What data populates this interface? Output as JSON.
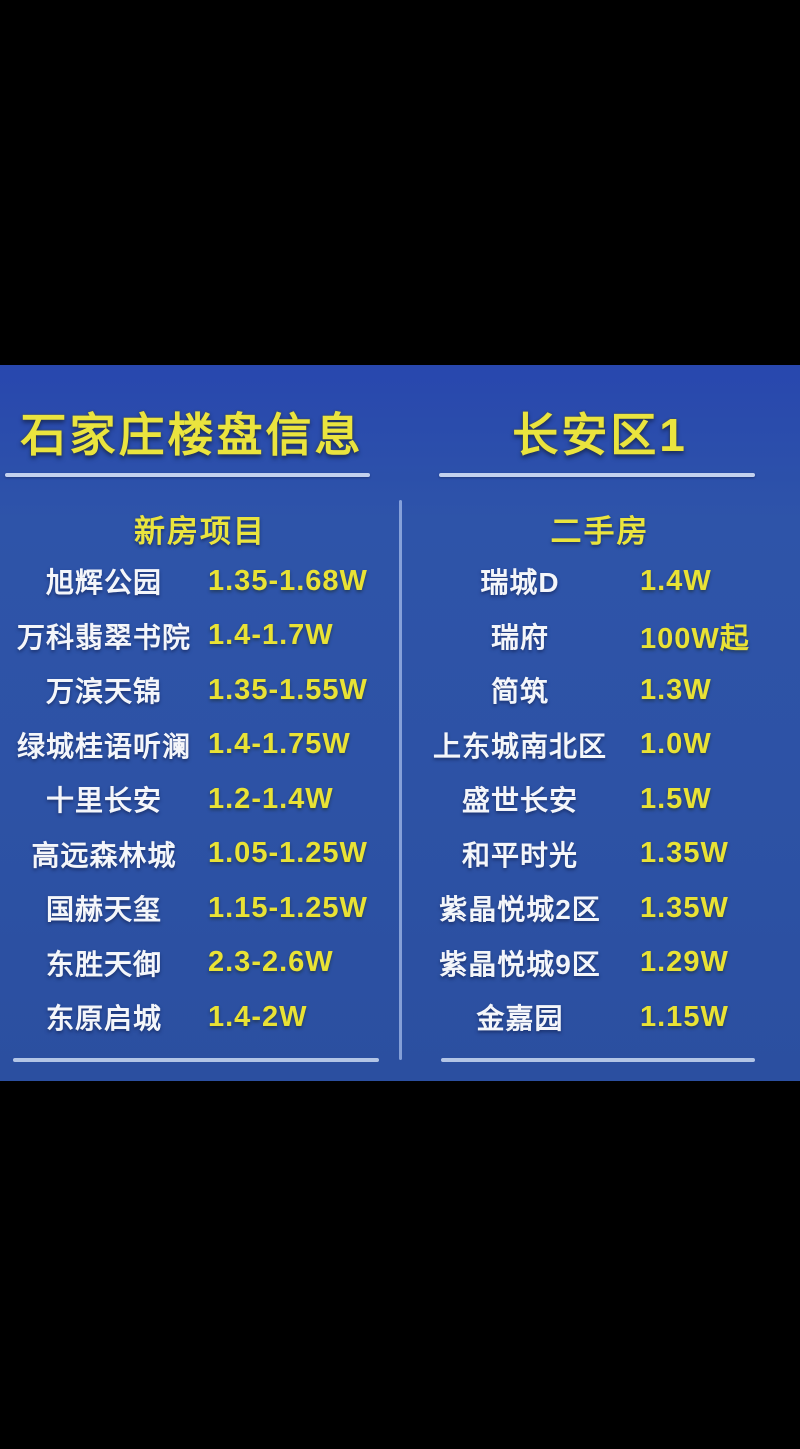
{
  "titles": {
    "left": "石家庄楼盘信息",
    "right": "长安区1"
  },
  "left_panel": {
    "header": "新房项目",
    "rows": [
      {
        "name": "旭辉公园",
        "price": "1.35-1.68W"
      },
      {
        "name": "万科翡翠书院",
        "price": "1.4-1.7W"
      },
      {
        "name": "万滨天锦",
        "price": "1.35-1.55W"
      },
      {
        "name": "绿城桂语听澜",
        "price": "1.4-1.75W"
      },
      {
        "name": "十里长安",
        "price": "1.2-1.4W"
      },
      {
        "name": "高远森林城",
        "price": "1.05-1.25W"
      },
      {
        "name": "国赫天玺",
        "price": "1.15-1.25W"
      },
      {
        "name": "东胜天御",
        "price": "2.3-2.6W"
      },
      {
        "name": "东原启城",
        "price": "1.4-2W"
      }
    ]
  },
  "right_panel": {
    "header": "二手房",
    "rows": [
      {
        "name": "瑞城D",
        "price": "1.4W"
      },
      {
        "name": "瑞府",
        "price": "100W起"
      },
      {
        "name": "简筑",
        "price": "1.3W"
      },
      {
        "name": "上东城南北区",
        "price": "1.0W"
      },
      {
        "name": "盛世长安",
        "price": "1.5W"
      },
      {
        "name": "和平时光",
        "price": "1.35W"
      },
      {
        "name": "紫晶悦城2区",
        "price": "1.35W"
      },
      {
        "name": "紫晶悦城9区",
        "price": "1.29W"
      },
      {
        "name": "金嘉园",
        "price": "1.15W"
      }
    ]
  },
  "colors": {
    "background": "#000000",
    "slide_blue": "#2d52a5",
    "accent_yellow": "#e9e235",
    "text_white": "#f4f6fa",
    "underline": "#dee8fa"
  }
}
